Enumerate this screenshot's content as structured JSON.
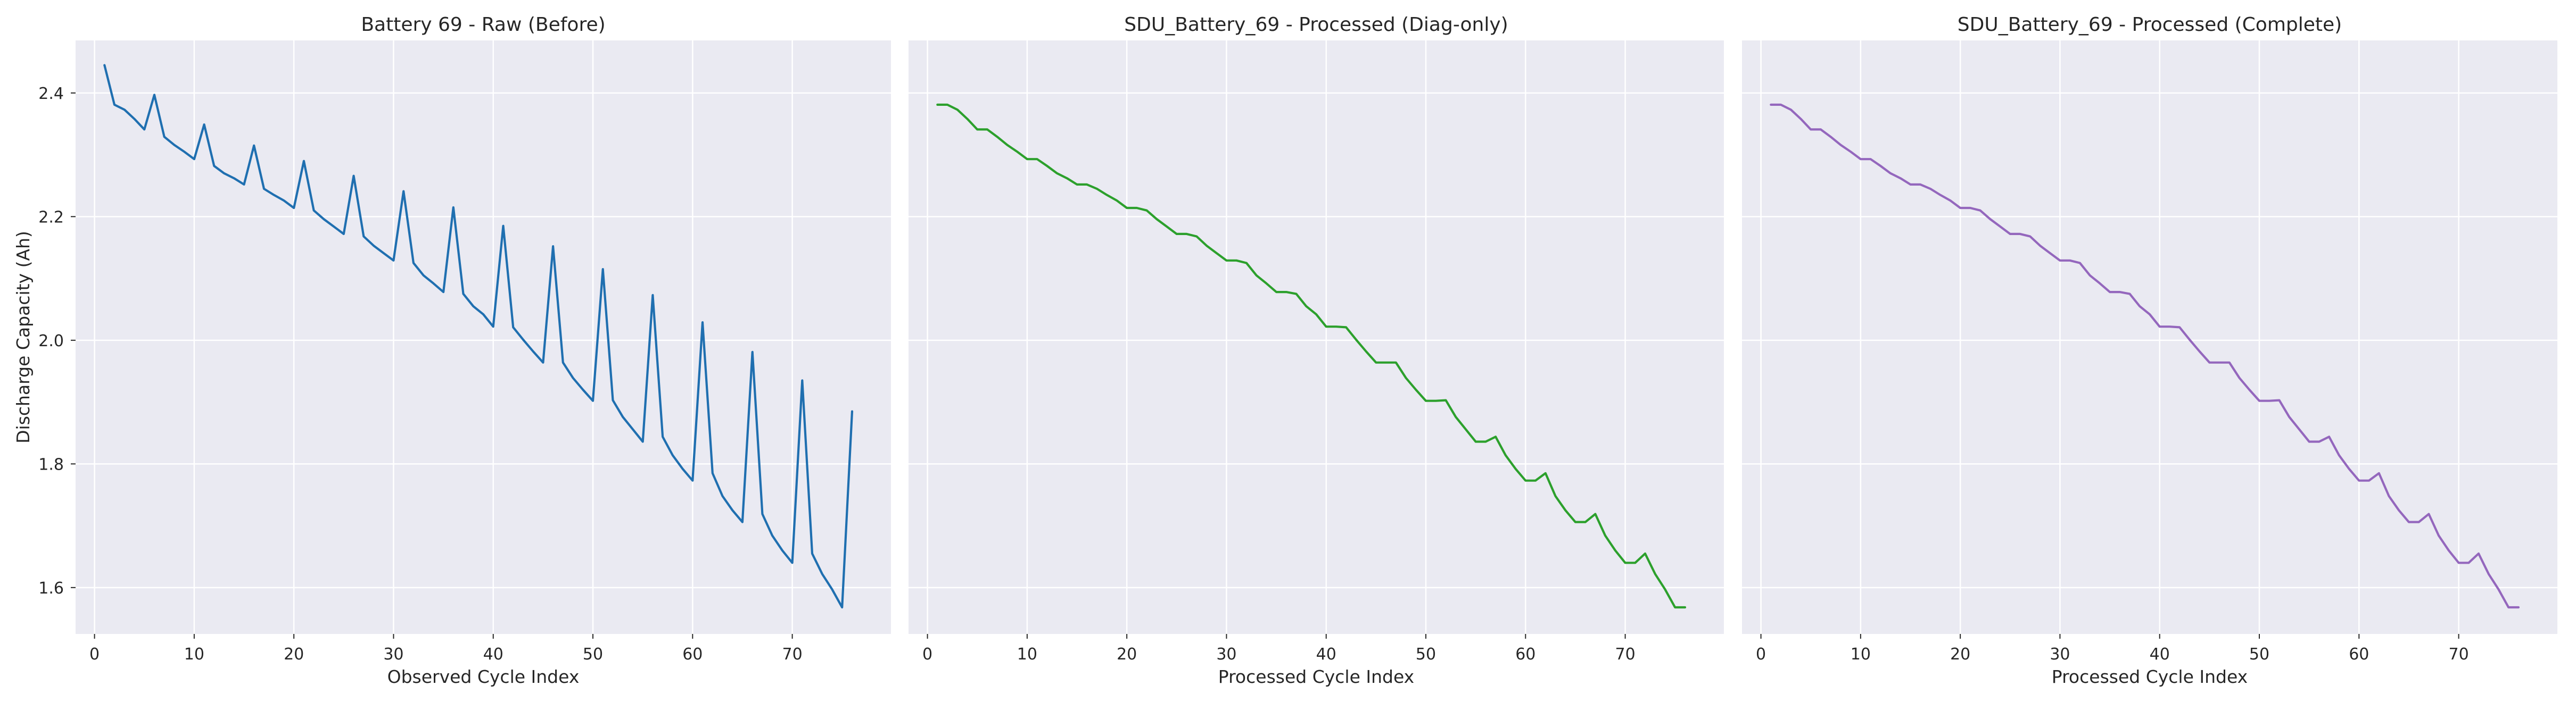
{
  "chart_data": [
    {
      "type": "line",
      "title": "Battery 69 - Raw (Before)",
      "xlabel": "Observed Cycle Index",
      "ylabel": "Discharge Capacity (Ah)",
      "xlim": [
        -1.9,
        79.9
      ],
      "ylim": [
        1.525,
        2.485
      ],
      "xticks": [
        0,
        10,
        20,
        30,
        40,
        50,
        60,
        70
      ],
      "yticks": [
        1.6,
        1.8,
        2.0,
        2.2,
        2.4
      ],
      "ytick_labels": [
        "1.6",
        "1.8",
        "2.0",
        "2.2",
        "2.4"
      ],
      "grid": true,
      "series": [
        {
          "color": "#1f6fb0",
          "x": [
            1,
            2,
            3,
            4,
            5,
            6,
            7,
            8,
            9,
            10,
            11,
            12,
            13,
            14,
            15,
            16,
            17,
            18,
            19,
            20,
            21,
            22,
            23,
            24,
            25,
            26,
            27,
            28,
            29,
            30,
            31,
            32,
            33,
            34,
            35,
            36,
            37,
            38,
            39,
            40,
            41,
            42,
            43,
            44,
            45,
            46,
            47,
            48,
            49,
            50,
            51,
            52,
            53,
            54,
            55,
            56,
            57,
            58,
            59,
            60,
            61,
            62,
            63,
            64,
            65,
            66,
            67,
            68,
            69,
            70,
            71,
            72,
            73,
            74,
            75,
            76
          ],
          "y": [
            2.445,
            2.381,
            2.373,
            2.358,
            2.341,
            2.397,
            2.329,
            2.316,
            2.305,
            2.293,
            2.349,
            2.282,
            2.27,
            2.262,
            2.252,
            2.315,
            2.245,
            2.235,
            2.226,
            2.214,
            2.29,
            2.21,
            2.196,
            2.184,
            2.172,
            2.266,
            2.168,
            2.153,
            2.141,
            2.129,
            2.241,
            2.125,
            2.105,
            2.092,
            2.078,
            2.215,
            2.075,
            2.055,
            2.042,
            2.022,
            2.185,
            2.021,
            2.001,
            1.982,
            1.964,
            2.152,
            1.964,
            1.939,
            1.92,
            1.902,
            2.115,
            1.903,
            1.876,
            1.856,
            1.836,
            2.073,
            1.844,
            1.814,
            1.792,
            1.773,
            2.029,
            1.785,
            1.748,
            1.725,
            1.706,
            1.981,
            1.719,
            1.684,
            1.66,
            1.64,
            1.935,
            1.655,
            1.622,
            1.597,
            1.568,
            1.885
          ]
        }
      ]
    },
    {
      "type": "line",
      "title": "SDU_Battery_69 - Processed (Diag-only)",
      "xlabel": "Processed Cycle Index",
      "ylabel": "",
      "xlim": [
        -1.9,
        79.9
      ],
      "ylim": [
        1.525,
        2.485
      ],
      "xticks": [
        0,
        10,
        20,
        30,
        40,
        50,
        60,
        70
      ],
      "yticks": [
        1.6,
        1.8,
        2.0,
        2.2,
        2.4
      ],
      "grid": true,
      "series": [
        {
          "color": "#2ca02c",
          "x": [
            1,
            2,
            3,
            4,
            5,
            6,
            7,
            8,
            9,
            10,
            11,
            12,
            13,
            14,
            15,
            16,
            17,
            18,
            19,
            20,
            21,
            22,
            23,
            24,
            25,
            26,
            27,
            28,
            29,
            30,
            31,
            32,
            33,
            34,
            35,
            36,
            37,
            38,
            39,
            40,
            41,
            42,
            43,
            44,
            45,
            46,
            47,
            48,
            49,
            50,
            51,
            52,
            53,
            54,
            55,
            56,
            57,
            58,
            59,
            60,
            61,
            62,
            63,
            64,
            65,
            66,
            67,
            68,
            69,
            70,
            71,
            72,
            73,
            74,
            75,
            76
          ],
          "y": [
            2.381,
            2.381,
            2.373,
            2.358,
            2.341,
            2.341,
            2.329,
            2.316,
            2.305,
            2.293,
            2.293,
            2.282,
            2.27,
            2.262,
            2.252,
            2.252,
            2.245,
            2.235,
            2.226,
            2.214,
            2.214,
            2.21,
            2.196,
            2.184,
            2.172,
            2.172,
            2.168,
            2.153,
            2.141,
            2.129,
            2.129,
            2.125,
            2.105,
            2.092,
            2.078,
            2.078,
            2.075,
            2.055,
            2.042,
            2.022,
            2.022,
            2.021,
            2.001,
            1.982,
            1.964,
            1.964,
            1.964,
            1.939,
            1.92,
            1.902,
            1.902,
            1.903,
            1.876,
            1.856,
            1.836,
            1.836,
            1.844,
            1.814,
            1.792,
            1.773,
            1.773,
            1.785,
            1.748,
            1.725,
            1.706,
            1.706,
            1.719,
            1.684,
            1.66,
            1.64,
            1.64,
            1.655,
            1.622,
            1.597,
            1.568,
            1.568
          ]
        }
      ]
    },
    {
      "type": "line",
      "title": "SDU_Battery_69 - Processed (Complete)",
      "xlabel": "Processed Cycle Index",
      "ylabel": "",
      "xlim": [
        -1.9,
        79.9
      ],
      "ylim": [
        1.525,
        2.485
      ],
      "xticks": [
        0,
        10,
        20,
        30,
        40,
        50,
        60,
        70
      ],
      "yticks": [
        1.6,
        1.8,
        2.0,
        2.2,
        2.4
      ],
      "grid": true,
      "series": [
        {
          "color": "#9467bd",
          "x": [
            1,
            2,
            3,
            4,
            5,
            6,
            7,
            8,
            9,
            10,
            11,
            12,
            13,
            14,
            15,
            16,
            17,
            18,
            19,
            20,
            21,
            22,
            23,
            24,
            25,
            26,
            27,
            28,
            29,
            30,
            31,
            32,
            33,
            34,
            35,
            36,
            37,
            38,
            39,
            40,
            41,
            42,
            43,
            44,
            45,
            46,
            47,
            48,
            49,
            50,
            51,
            52,
            53,
            54,
            55,
            56,
            57,
            58,
            59,
            60,
            61,
            62,
            63,
            64,
            65,
            66,
            67,
            68,
            69,
            70,
            71,
            72,
            73,
            74,
            75,
            76
          ],
          "y": [
            2.381,
            2.381,
            2.373,
            2.358,
            2.341,
            2.341,
            2.329,
            2.316,
            2.305,
            2.293,
            2.293,
            2.282,
            2.27,
            2.262,
            2.252,
            2.252,
            2.245,
            2.235,
            2.226,
            2.214,
            2.214,
            2.21,
            2.196,
            2.184,
            2.172,
            2.172,
            2.168,
            2.153,
            2.141,
            2.129,
            2.129,
            2.125,
            2.105,
            2.092,
            2.078,
            2.078,
            2.075,
            2.055,
            2.042,
            2.022,
            2.022,
            2.021,
            2.001,
            1.982,
            1.964,
            1.964,
            1.964,
            1.939,
            1.92,
            1.902,
            1.902,
            1.903,
            1.876,
            1.856,
            1.836,
            1.836,
            1.844,
            1.814,
            1.792,
            1.773,
            1.773,
            1.785,
            1.748,
            1.725,
            1.706,
            1.706,
            1.719,
            1.684,
            1.66,
            1.64,
            1.64,
            1.655,
            1.622,
            1.597,
            1.568,
            1.568
          ]
        }
      ]
    }
  ]
}
